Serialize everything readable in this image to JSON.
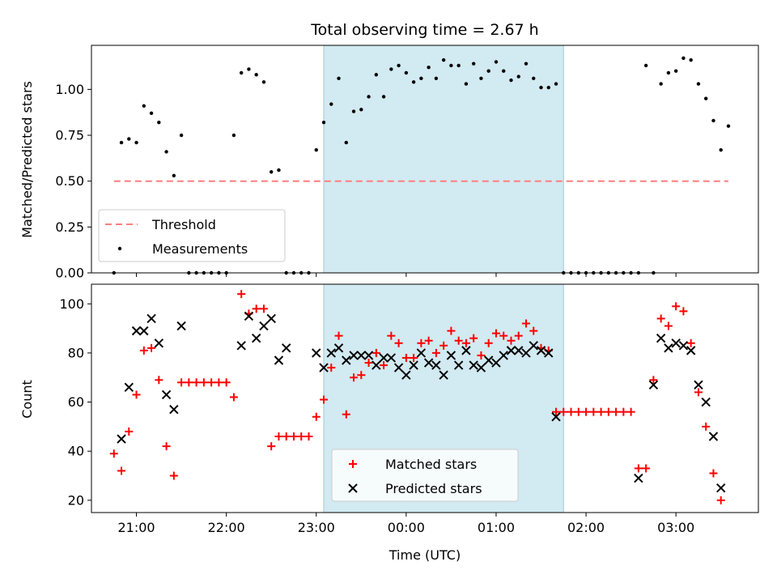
{
  "chart_data": {
    "title": "Total observing time = 2.67 h",
    "shaded_region": {
      "start": "23:05",
      "end": "01:45",
      "color": "#add8e6"
    },
    "x_ticks": [
      "21:00",
      "22:00",
      "23:00",
      "00:00",
      "01:00",
      "02:00",
      "03:00"
    ],
    "x_range": [
      "20:30",
      "03:55"
    ],
    "xlabel": "Time (UTC)",
    "panels": [
      {
        "type": "scatter",
        "ylabel": "Matched/Predicted stars",
        "ylim": [
          0,
          1.24
        ],
        "y_ticks": [
          "0.00",
          "0.25",
          "0.50",
          "0.75",
          "1.00"
        ],
        "legend": {
          "position": "lower-left",
          "entries": [
            "Threshold",
            "Measurements"
          ]
        },
        "series": [
          {
            "name": "Threshold",
            "style": "dashed-line",
            "color": "#ff7f7f",
            "points": [
              [
                "20:45",
                0.5
              ],
              [
                "03:35",
                0.5
              ]
            ]
          },
          {
            "name": "Measurements",
            "style": "dot",
            "color": "#000000",
            "points": [
              [
                "20:45",
                0.0
              ],
              [
                "20:50",
                0.71
              ],
              [
                "20:55",
                0.73
              ],
              [
                "21:00",
                0.71
              ],
              [
                "21:05",
                0.91
              ],
              [
                "21:10",
                0.87
              ],
              [
                "21:15",
                0.82
              ],
              [
                "21:20",
                0.66
              ],
              [
                "21:25",
                0.53
              ],
              [
                "21:30",
                0.75
              ],
              [
                "21:35",
                0.0
              ],
              [
                "21:40",
                0.0
              ],
              [
                "21:45",
                0.0
              ],
              [
                "21:50",
                0.0
              ],
              [
                "21:55",
                0.0
              ],
              [
                "22:00",
                0.0
              ],
              [
                "22:05",
                0.75
              ],
              [
                "22:10",
                1.09
              ],
              [
                "22:15",
                1.11
              ],
              [
                "22:20",
                1.08
              ],
              [
                "22:25",
                1.04
              ],
              [
                "22:30",
                0.55
              ],
              [
                "22:35",
                0.56
              ],
              [
                "22:40",
                0.0
              ],
              [
                "22:45",
                0.0
              ],
              [
                "22:50",
                0.0
              ],
              [
                "22:55",
                0.0
              ],
              [
                "23:00",
                0.67
              ],
              [
                "23:05",
                0.82
              ],
              [
                "23:10",
                0.92
              ],
              [
                "23:15",
                1.06
              ],
              [
                "23:20",
                0.71
              ],
              [
                "23:25",
                0.88
              ],
              [
                "23:30",
                0.89
              ],
              [
                "23:35",
                0.96
              ],
              [
                "23:40",
                1.08
              ],
              [
                "23:45",
                0.96
              ],
              [
                "23:50",
                1.11
              ],
              [
                "23:55",
                1.13
              ],
              [
                "00:00",
                1.09
              ],
              [
                "00:05",
                1.04
              ],
              [
                "00:10",
                1.06
              ],
              [
                "00:15",
                1.12
              ],
              [
                "00:20",
                1.06
              ],
              [
                "00:25",
                1.16
              ],
              [
                "00:30",
                1.13
              ],
              [
                "00:35",
                1.13
              ],
              [
                "00:40",
                1.03
              ],
              [
                "00:45",
                1.14
              ],
              [
                "00:50",
                1.06
              ],
              [
                "00:55",
                1.1
              ],
              [
                "01:00",
                1.15
              ],
              [
                "01:05",
                1.1
              ],
              [
                "01:10",
                1.05
              ],
              [
                "01:15",
                1.07
              ],
              [
                "01:20",
                1.14
              ],
              [
                "01:25",
                1.06
              ],
              [
                "01:30",
                1.01
              ],
              [
                "01:35",
                1.01
              ],
              [
                "01:40",
                1.03
              ],
              [
                "01:45",
                0.0
              ],
              [
                "01:50",
                0.0
              ],
              [
                "01:55",
                0.0
              ],
              [
                "02:00",
                0.0
              ],
              [
                "02:05",
                0.0
              ],
              [
                "02:10",
                0.0
              ],
              [
                "02:15",
                0.0
              ],
              [
                "02:20",
                0.0
              ],
              [
                "02:25",
                0.0
              ],
              [
                "02:30",
                0.0
              ],
              [
                "02:35",
                0.0
              ],
              [
                "02:40",
                1.13
              ],
              [
                "02:45",
                0.0
              ],
              [
                "02:50",
                1.03
              ],
              [
                "02:55",
                1.09
              ],
              [
                "03:00",
                1.1
              ],
              [
                "03:05",
                1.17
              ],
              [
                "03:10",
                1.16
              ],
              [
                "03:15",
                1.03
              ],
              [
                "03:20",
                0.95
              ],
              [
                "03:25",
                0.83
              ],
              [
                "03:30",
                0.67
              ],
              [
                "03:35",
                0.8
              ]
            ]
          }
        ]
      },
      {
        "type": "scatter",
        "ylabel": "Count",
        "ylim": [
          15,
          108
        ],
        "y_ticks": [
          "20",
          "40",
          "60",
          "80",
          "100"
        ],
        "legend": {
          "position": "lower-center",
          "entries": [
            "Matched stars",
            "Predicted stars"
          ]
        },
        "series": [
          {
            "name": "Matched stars",
            "marker": "+",
            "color": "#ff0000",
            "points": [
              [
                "20:45",
                39
              ],
              [
                "20:50",
                32
              ],
              [
                "20:55",
                48
              ],
              [
                "21:00",
                63
              ],
              [
                "21:05",
                81
              ],
              [
                "21:10",
                82
              ],
              [
                "21:15",
                69
              ],
              [
                "21:20",
                42
              ],
              [
                "21:25",
                30
              ],
              [
                "21:30",
                68
              ],
              [
                "21:35",
                68
              ],
              [
                "21:40",
                68
              ],
              [
                "21:45",
                68
              ],
              [
                "21:50",
                68
              ],
              [
                "21:55",
                68
              ],
              [
                "22:00",
                68
              ],
              [
                "22:05",
                62
              ],
              [
                "22:10",
                104
              ],
              [
                "22:15",
                96
              ],
              [
                "22:20",
                98
              ],
              [
                "22:25",
                98
              ],
              [
                "22:30",
                42
              ],
              [
                "22:35",
                46
              ],
              [
                "22:40",
                46
              ],
              [
                "22:45",
                46
              ],
              [
                "22:50",
                46
              ],
              [
                "22:55",
                46
              ],
              [
                "23:00",
                54
              ],
              [
                "23:05",
                61
              ],
              [
                "23:10",
                74
              ],
              [
                "23:15",
                87
              ],
              [
                "23:20",
                55
              ],
              [
                "23:25",
                70
              ],
              [
                "23:30",
                71
              ],
              [
                "23:35",
                76
              ],
              [
                "23:40",
                80
              ],
              [
                "23:45",
                75
              ],
              [
                "23:50",
                87
              ],
              [
                "23:55",
                84
              ],
              [
                "00:00",
                78
              ],
              [
                "00:05",
                78
              ],
              [
                "00:10",
                84
              ],
              [
                "00:15",
                85
              ],
              [
                "00:20",
                80
              ],
              [
                "00:25",
                83
              ],
              [
                "00:30",
                89
              ],
              [
                "00:35",
                85
              ],
              [
                "00:40",
                84
              ],
              [
                "00:45",
                86
              ],
              [
                "00:50",
                79
              ],
              [
                "00:55",
                84
              ],
              [
                "01:00",
                88
              ],
              [
                "01:05",
                87
              ],
              [
                "01:10",
                85
              ],
              [
                "01:15",
                87
              ],
              [
                "01:20",
                92
              ],
              [
                "01:25",
                89
              ],
              [
                "01:30",
                82
              ],
              [
                "01:35",
                81
              ],
              [
                "01:40",
                56
              ],
              [
                "01:45",
                56
              ],
              [
                "01:50",
                56
              ],
              [
                "01:55",
                56
              ],
              [
                "02:00",
                56
              ],
              [
                "02:05",
                56
              ],
              [
                "02:10",
                56
              ],
              [
                "02:15",
                56
              ],
              [
                "02:20",
                56
              ],
              [
                "02:25",
                56
              ],
              [
                "02:30",
                56
              ],
              [
                "02:35",
                33
              ],
              [
                "02:40",
                33
              ],
              [
                "02:45",
                69
              ],
              [
                "02:50",
                94
              ],
              [
                "02:55",
                91
              ],
              [
                "03:00",
                99
              ],
              [
                "03:05",
                97
              ],
              [
                "03:10",
                84
              ],
              [
                "03:15",
                64
              ],
              [
                "03:20",
                50
              ],
              [
                "03:25",
                31
              ],
              [
                "03:30",
                20
              ]
            ]
          },
          {
            "name": "Predicted stars",
            "marker": "x",
            "color": "#000000",
            "points": [
              [
                "20:50",
                45
              ],
              [
                "20:55",
                66
              ],
              [
                "21:00",
                89
              ],
              [
                "21:05",
                89
              ],
              [
                "21:10",
                94
              ],
              [
                "21:15",
                84
              ],
              [
                "21:20",
                63
              ],
              [
                "21:25",
                57
              ],
              [
                "21:30",
                91
              ],
              [
                "22:10",
                83
              ],
              [
                "22:15",
                95
              ],
              [
                "22:20",
                86
              ],
              [
                "22:25",
                91
              ],
              [
                "22:30",
                94
              ],
              [
                "22:35",
                77
              ],
              [
                "22:40",
                82
              ],
              [
                "23:00",
                80
              ],
              [
                "23:05",
                74
              ],
              [
                "23:10",
                80
              ],
              [
                "23:15",
                82
              ],
              [
                "23:20",
                77
              ],
              [
                "23:25",
                79
              ],
              [
                "23:30",
                79
              ],
              [
                "23:35",
                79
              ],
              [
                "23:40",
                75
              ],
              [
                "23:45",
                78
              ],
              [
                "23:50",
                78
              ],
              [
                "23:55",
                74
              ],
              [
                "00:00",
                71
              ],
              [
                "00:05",
                75
              ],
              [
                "00:10",
                80
              ],
              [
                "00:15",
                76
              ],
              [
                "00:20",
                75
              ],
              [
                "00:25",
                71
              ],
              [
                "00:30",
                79
              ],
              [
                "00:35",
                75
              ],
              [
                "00:40",
                81
              ],
              [
                "00:45",
                75
              ],
              [
                "00:50",
                74
              ],
              [
                "00:55",
                77
              ],
              [
                "01:00",
                76
              ],
              [
                "01:05",
                79
              ],
              [
                "01:10",
                81
              ],
              [
                "01:15",
                81
              ],
              [
                "01:20",
                80
              ],
              [
                "01:25",
                83
              ],
              [
                "01:30",
                81
              ],
              [
                "01:35",
                80
              ],
              [
                "01:40",
                54
              ],
              [
                "02:35",
                29
              ],
              [
                "02:45",
                67
              ],
              [
                "02:50",
                86
              ],
              [
                "02:55",
                82
              ],
              [
                "03:00",
                84
              ],
              [
                "03:05",
                83
              ],
              [
                "03:10",
                81
              ],
              [
                "03:15",
                67
              ],
              [
                "03:20",
                60
              ],
              [
                "03:25",
                46
              ],
              [
                "03:30",
                25
              ]
            ]
          }
        ]
      }
    ]
  }
}
